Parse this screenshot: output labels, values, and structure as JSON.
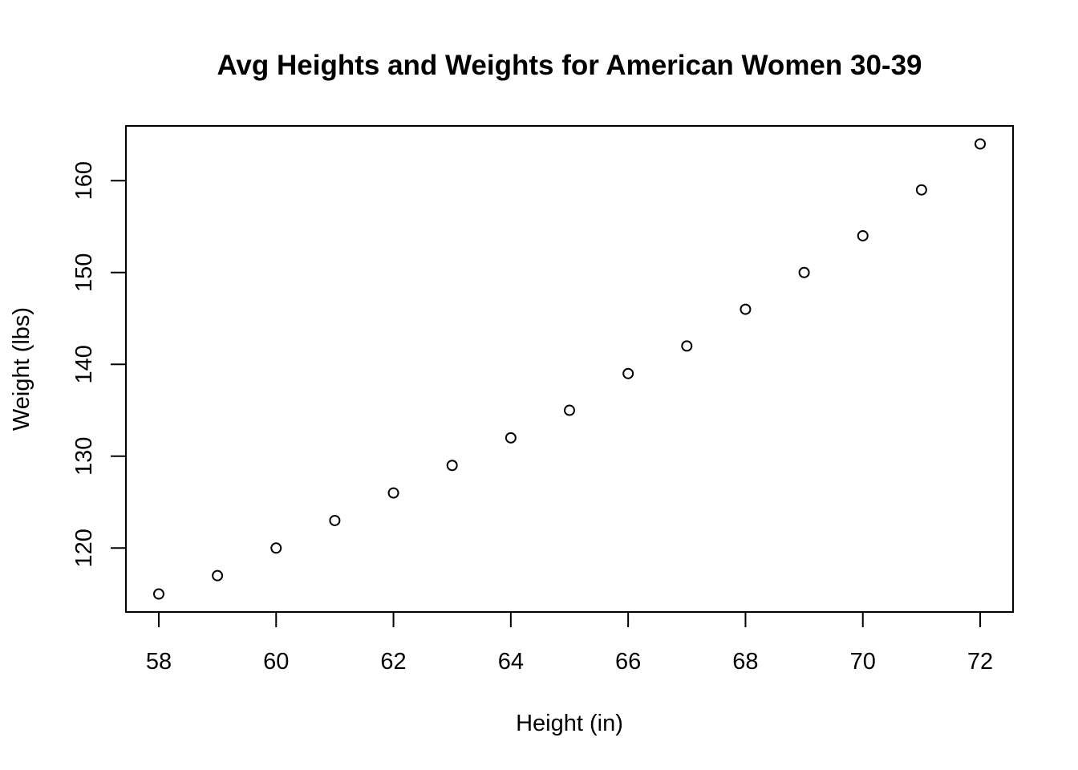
{
  "chart_data": {
    "type": "scatter",
    "title": "Avg Heights and Weights for American Women 30-39",
    "xlabel": "Height (in)",
    "ylabel": "Weight (lbs)",
    "x": [
      58,
      59,
      60,
      61,
      62,
      63,
      64,
      65,
      66,
      67,
      68,
      69,
      70,
      71,
      72
    ],
    "y": [
      115,
      117,
      120,
      123,
      126,
      129,
      132,
      135,
      139,
      142,
      146,
      150,
      154,
      159,
      164
    ],
    "xlim": [
      57.44,
      72.56
    ],
    "ylim": [
      113.04,
      165.96
    ],
    "xticks": [
      58,
      60,
      62,
      64,
      66,
      68,
      70,
      72
    ],
    "yticks": [
      120,
      130,
      140,
      150,
      160
    ],
    "grid": false,
    "marker": "open-circle",
    "color": "#000000"
  }
}
